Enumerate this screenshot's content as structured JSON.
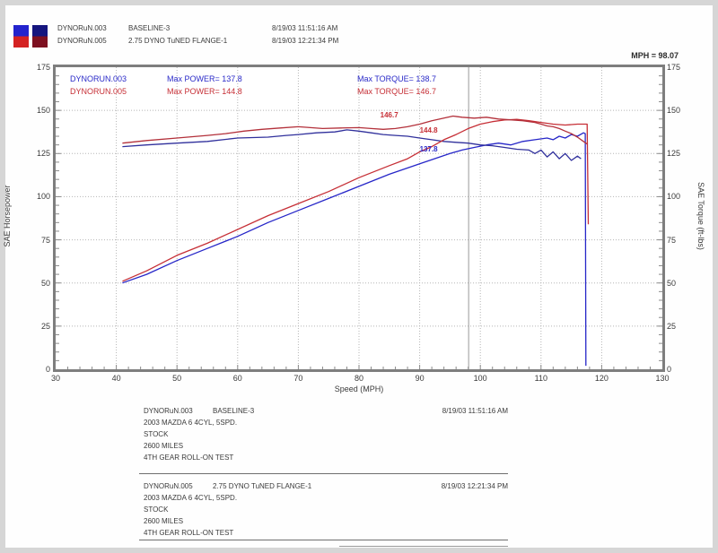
{
  "header": {
    "runs": [
      {
        "name": "DYNORuN.003",
        "desc": "BASELINE-3",
        "timestamp": "8/19/03 11:51:16 AM"
      },
      {
        "name": "DYNORuN.005",
        "desc": "2.75 DYNO TuNED FLANGE-1",
        "timestamp": "8/19/03 12:21:34 PM"
      }
    ],
    "chip_colors": [
      {
        "top": "#2323cd",
        "bottom": "#d42222"
      },
      {
        "top": "#15157e",
        "bottom": "#7d1020"
      }
    ],
    "mph_readout": "MPH = 98.07"
  },
  "chart_data": {
    "type": "line",
    "title": "",
    "xlabel": "Speed (MPH)",
    "ylabel_left": "SAE Horsepower",
    "ylabel_right": "SAE Torque (ft-lbs)",
    "xlim": [
      30,
      130
    ],
    "ylim": [
      0,
      175
    ],
    "x_ticks": [
      30,
      40,
      50,
      60,
      70,
      80,
      90,
      100,
      110,
      120,
      130
    ],
    "y_ticks": [
      0,
      25,
      50,
      75,
      100,
      125,
      150,
      175
    ],
    "grid": "dotted",
    "legend_position": "top-left-inside",
    "cursor_mph": 98.07,
    "legend_inside": [
      {
        "run": "DYNORUN.003",
        "power_label": "Max POWER= 137.8",
        "torque_label": "Max TORQUE= 138.7",
        "color": "#2a2ac8"
      },
      {
        "run": "DYNORUN.005",
        "power_label": "Max POWER= 144.8",
        "torque_label": "Max TORQUE= 146.7",
        "color": "#c62f36"
      }
    ],
    "annotations": [
      {
        "text": "146.7",
        "color": "#c62f36",
        "mph": 83.5,
        "value": 147.5
      },
      {
        "text": "144.8",
        "color": "#c62f36",
        "mph": 90,
        "value": 138.5
      },
      {
        "text": "137.8",
        "color": "#2a2ac8",
        "mph": 90,
        "value": 127.5
      }
    ],
    "series": [
      {
        "name": "run003-power",
        "unit": "hp",
        "color": "#2626c8",
        "points": [
          [
            41,
            50
          ],
          [
            45,
            55
          ],
          [
            50,
            63
          ],
          [
            55,
            70
          ],
          [
            60,
            77
          ],
          [
            65,
            85
          ],
          [
            70,
            92
          ],
          [
            75,
            99
          ],
          [
            80,
            106
          ],
          [
            85,
            113
          ],
          [
            90,
            119
          ],
          [
            95,
            125
          ],
          [
            97,
            127
          ],
          [
            99,
            128.5
          ],
          [
            101,
            130
          ],
          [
            103,
            131
          ],
          [
            105,
            130
          ],
          [
            107,
            132
          ],
          [
            109,
            133
          ],
          [
            111,
            134
          ],
          [
            112,
            133
          ],
          [
            113,
            135
          ],
          [
            114,
            134
          ],
          [
            115,
            136
          ],
          [
            116,
            135
          ],
          [
            117,
            137
          ],
          [
            117.3,
            136.5
          ],
          [
            117.4,
            2
          ]
        ]
      },
      {
        "name": "run003-torque",
        "unit": "ft-lbs",
        "color": "#30309c",
        "points": [
          [
            41,
            129
          ],
          [
            45,
            130
          ],
          [
            50,
            131
          ],
          [
            55,
            132
          ],
          [
            60,
            134
          ],
          [
            65,
            134.5
          ],
          [
            68,
            135.5
          ],
          [
            70,
            136
          ],
          [
            73,
            137
          ],
          [
            76,
            137.5
          ],
          [
            78,
            138.7
          ],
          [
            80,
            138
          ],
          [
            82,
            137
          ],
          [
            84,
            136
          ],
          [
            86,
            135.5
          ],
          [
            88,
            135
          ],
          [
            90,
            134
          ],
          [
            92,
            133
          ],
          [
            94,
            132
          ],
          [
            96,
            131.5
          ],
          [
            98,
            131
          ],
          [
            100,
            130
          ],
          [
            102,
            129.5
          ],
          [
            104,
            128.5
          ],
          [
            106,
            127.5
          ],
          [
            108,
            127
          ],
          [
            109,
            125
          ],
          [
            110,
            127
          ],
          [
            111,
            123
          ],
          [
            112,
            126
          ],
          [
            113,
            122
          ],
          [
            114,
            125
          ],
          [
            115,
            121
          ],
          [
            116,
            123.5
          ],
          [
            116.6,
            122
          ]
        ]
      },
      {
        "name": "run005-power",
        "unit": "hp",
        "color": "#c62f36",
        "points": [
          [
            41,
            51
          ],
          [
            45,
            57
          ],
          [
            50,
            66
          ],
          [
            55,
            73
          ],
          [
            60,
            81
          ],
          [
            65,
            89
          ],
          [
            70,
            96
          ],
          [
            75,
            103
          ],
          [
            80,
            111
          ],
          [
            85,
            118
          ],
          [
            88,
            122
          ],
          [
            90,
            126
          ],
          [
            92,
            129
          ],
          [
            94,
            133
          ],
          [
            96,
            136
          ],
          [
            98,
            139.5
          ],
          [
            100,
            142
          ],
          [
            102,
            143.5
          ],
          [
            104,
            144.4
          ],
          [
            106,
            144.8
          ],
          [
            108,
            144
          ],
          [
            110,
            143
          ],
          [
            112,
            142
          ],
          [
            114,
            141.5
          ],
          [
            116,
            142
          ],
          [
            117.6,
            142
          ],
          [
            117.8,
            84
          ]
        ]
      },
      {
        "name": "run005-torque",
        "unit": "ft-lbs",
        "color": "#b3303a",
        "points": [
          [
            41,
            131
          ],
          [
            45,
            132.5
          ],
          [
            50,
            134
          ],
          [
            55,
            135.5
          ],
          [
            58,
            136.5
          ],
          [
            61,
            138
          ],
          [
            64,
            139
          ],
          [
            67,
            139.8
          ],
          [
            70,
            140.5
          ],
          [
            72,
            140
          ],
          [
            74,
            139.5
          ],
          [
            77,
            139.8
          ],
          [
            80,
            140
          ],
          [
            82,
            139.5
          ],
          [
            84,
            139
          ],
          [
            86,
            139.5
          ],
          [
            88,
            140.5
          ],
          [
            90,
            142
          ],
          [
            92,
            144
          ],
          [
            94,
            145.5
          ],
          [
            95.5,
            146.7
          ],
          [
            97,
            146
          ],
          [
            99,
            145.5
          ],
          [
            101,
            146
          ],
          [
            103,
            145
          ],
          [
            105,
            144.5
          ],
          [
            107,
            144
          ],
          [
            109,
            143
          ],
          [
            110,
            142
          ],
          [
            111,
            141
          ],
          [
            112,
            140.5
          ],
          [
            113,
            139.5
          ],
          [
            114,
            138
          ],
          [
            115,
            136.5
          ],
          [
            116,
            134.5
          ],
          [
            117,
            132
          ],
          [
            117.6,
            130.5
          ]
        ]
      }
    ]
  },
  "footer": {
    "blocks": [
      {
        "name": "DYNORuN.003",
        "desc": "BASELINE-3",
        "timestamp": "8/19/03 11:51:16 AM",
        "lines": [
          "2003 MAZDA 6 4CYL, 5SPD.",
          "STOCK",
          "2600 MILES",
          "4TH GEAR ROLL-ON TEST"
        ]
      },
      {
        "name": "DYNORuN.005",
        "desc": "2.75 DYNO TuNED FLANGE-1",
        "timestamp": "8/19/03 12:21:34 PM",
        "lines": [
          "2003 MAZDA 6 4CYL, 5SPD.",
          "STOCK",
          "2600 MILES",
          "4TH GEAR ROLL-ON TEST"
        ]
      }
    ]
  }
}
